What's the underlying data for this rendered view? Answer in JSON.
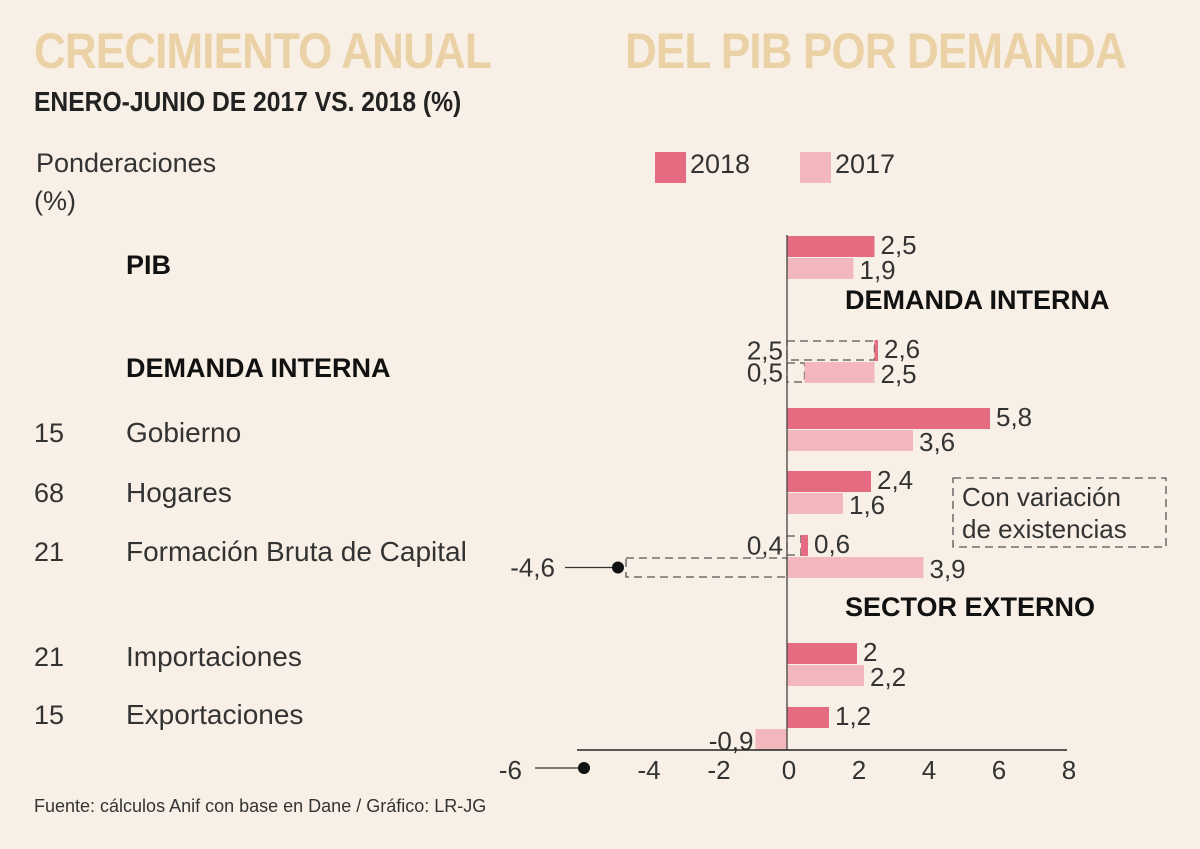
{
  "title_left": "CRECIMIENTO ANUAL",
  "title_right": "DEL PIB POR DEMANDA",
  "subtitle": "ENERO-JUNIO DE 2017 VS. 2018 (%)",
  "weights_header_line1": "Ponderaciones",
  "weights_header_line2": "(%)",
  "source": "Fuente: cálculos Anif con base en Dane / Gráfico: LR-JG",
  "callout": [
    "Con variación",
    "de existencias"
  ],
  "colors": {
    "2018": "#e56b80",
    "2017": "#f2b8be",
    "background": "#f8f0e6",
    "title": "#ebd2a6"
  },
  "chart_data": {
    "type": "bar",
    "orientation": "horizontal",
    "title": "CRECIMIENTO ANUAL DEL PIB POR DEMANDA",
    "subtitle": "ENERO-JUNIO DE 2017 VS. 2018 (%)",
    "xlim": [
      -6,
      8
    ],
    "xticks": [
      -6,
      -4,
      -2,
      0,
      2,
      4,
      6,
      8
    ],
    "legend": "top-right",
    "section_labels": [
      "DEMANDA INTERNA",
      "SECTOR EXTERNO"
    ],
    "categories": [
      {
        "label": "PIB",
        "weight": "",
        "bold": true,
        "v2018": 2.5,
        "v2017": 1.9
      },
      {
        "label": "DEMANDA INTERNA",
        "weight": "",
        "bold": true,
        "v2018": 2.6,
        "v2017": 2.5,
        "alt2018": 2.5,
        "alt2017": 0.5
      },
      {
        "label": "Gobierno",
        "weight": "15",
        "v2018": 5.8,
        "v2017": 3.6
      },
      {
        "label": "Hogares",
        "weight": "68",
        "v2018": 2.4,
        "v2017": 1.6
      },
      {
        "label": "Formación Bruta de Capital",
        "weight": "21",
        "v2018": 0.6,
        "v2017": 3.9,
        "alt2018": 0.4,
        "alt2017": -4.6
      },
      {
        "label": "Importaciones",
        "weight": "21",
        "v2018": 2,
        "v2017": 2.2
      },
      {
        "label": "Exportaciones",
        "weight": "15",
        "v2018": 1.2,
        "v2017": -0.9
      }
    ],
    "series": [
      {
        "name": "2018"
      },
      {
        "name": "2017"
      }
    ],
    "alt_series_note": "Con variación de existencias"
  }
}
